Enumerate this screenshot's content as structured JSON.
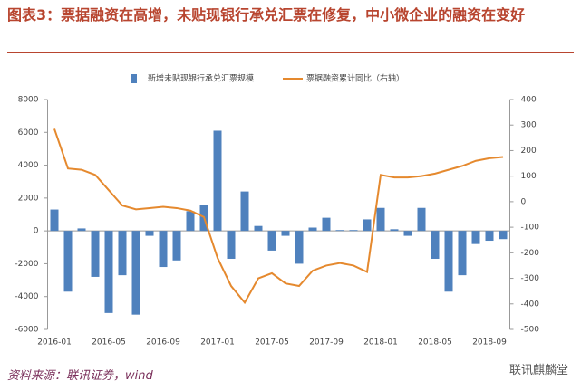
{
  "title": "图表3：票据融资在高增，未贴现银行承兑汇票在修复，中小微企业的融资在变好",
  "source": "资料来源：联讯证券，wind",
  "watermark": "联讯麒麟堂",
  "chart_data": {
    "type": "bar_line",
    "categories": [
      "2016-01",
      null,
      null,
      null,
      "2016-05",
      null,
      null,
      null,
      "2016-09",
      null,
      null,
      null,
      "2017-01",
      null,
      null,
      null,
      "2017-05",
      null,
      null,
      null,
      "2017-09",
      null,
      null,
      null,
      "2018-01",
      null,
      null,
      null,
      "2018-05",
      null,
      null,
      null,
      "2018-09",
      null
    ],
    "series": [
      {
        "name": "新增未贴现银行承兑汇票规模",
        "color": "#4f81bd",
        "type": "bar",
        "values": [
          1300,
          -3700,
          150,
          -2800,
          -5000,
          -2700,
          -5100,
          -300,
          -2200,
          -1800,
          1200,
          1600,
          6100,
          -1700,
          2400,
          300,
          -1200,
          -300,
          -2000,
          200,
          800,
          50,
          50,
          700,
          1400,
          100,
          -300,
          1400,
          -1700,
          -3700,
          -2700,
          -800,
          -600,
          -500
        ]
      },
      {
        "name": "票据融资累计同比（右轴）",
        "color": "#e5892e",
        "type": "line",
        "axis": "y2",
        "values": [
          285,
          130,
          125,
          105,
          45,
          -15,
          -30,
          -25,
          -20,
          -25,
          -35,
          -60,
          -220,
          -330,
          -395,
          -300,
          -280,
          -320,
          -330,
          -270,
          -250,
          -240,
          -250,
          -275,
          105,
          95,
          95,
          100,
          110,
          125,
          140,
          160,
          170,
          175
        ]
      }
    ],
    "ylim": [
      -6000,
      8000
    ],
    "yticks": [
      -6000,
      -4000,
      -2000,
      0,
      2000,
      4000,
      6000,
      8000
    ],
    "y2lim": [
      -500,
      400
    ],
    "y2ticks": [
      -500,
      -400,
      -300,
      -200,
      -100,
      0,
      100,
      200,
      300,
      400
    ]
  }
}
